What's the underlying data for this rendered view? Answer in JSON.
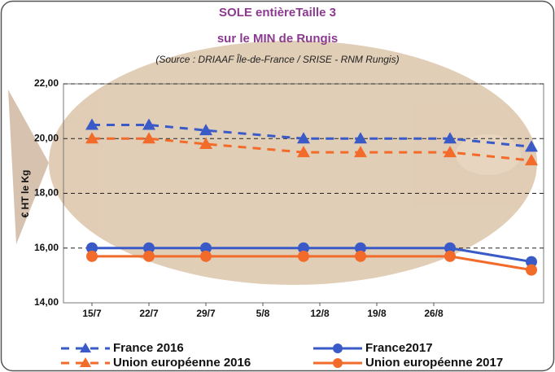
{
  "chart_data": {
    "type": "line",
    "title": "SOLE  entièreTaille 3",
    "subtitle": "sur le MIN de Rungis",
    "source": "(Source : DRIAAF Île-de-France / SRISE - RNM Rungis)",
    "y_label": "€ HT le Kg",
    "x": [
      0,
      7,
      14,
      26,
      33,
      44,
      54
    ],
    "xlim": [
      -3.5,
      55.5
    ],
    "xticks": [
      {
        "value": 0,
        "label": "15/7"
      },
      {
        "value": 7,
        "label": "22/7"
      },
      {
        "value": 14,
        "label": "29/7"
      },
      {
        "value": 21,
        "label": "5/8"
      },
      {
        "value": 28,
        "label": "12/8"
      },
      {
        "value": 35,
        "label": "19/8"
      },
      {
        "value": 42,
        "label": "26/8"
      }
    ],
    "ylim": [
      14,
      22
    ],
    "yticks": [
      {
        "value": 14,
        "label": "14,00"
      },
      {
        "value": 16,
        "label": "16,00"
      },
      {
        "value": 18,
        "label": "18,00"
      },
      {
        "value": 20,
        "label": "20,00"
      },
      {
        "value": 22,
        "label": "22,00"
      }
    ],
    "grid": true,
    "series": [
      {
        "name": "France 2016",
        "color": "#3a5bc7",
        "dash": true,
        "marker": "triangle",
        "values": [
          20.5,
          20.5,
          20.3,
          20.0,
          20.0,
          20.0,
          19.7
        ]
      },
      {
        "name": "France2017",
        "color": "#3a5bc7",
        "dash": false,
        "marker": "circle",
        "values": [
          16.0,
          16.0,
          16.0,
          16.0,
          16.0,
          16.0,
          15.5
        ]
      },
      {
        "name": "Union européenne 2016",
        "color": "#f26b2a",
        "dash": true,
        "marker": "triangle",
        "values": [
          20.0,
          20.0,
          19.8,
          19.5,
          19.5,
          19.5,
          19.2
        ]
      },
      {
        "name": "Union européenne 2017",
        "color": "#f26b2a",
        "dash": false,
        "marker": "circle",
        "values": [
          15.7,
          15.7,
          15.7,
          15.7,
          15.7,
          15.7,
          15.2
        ]
      }
    ]
  }
}
